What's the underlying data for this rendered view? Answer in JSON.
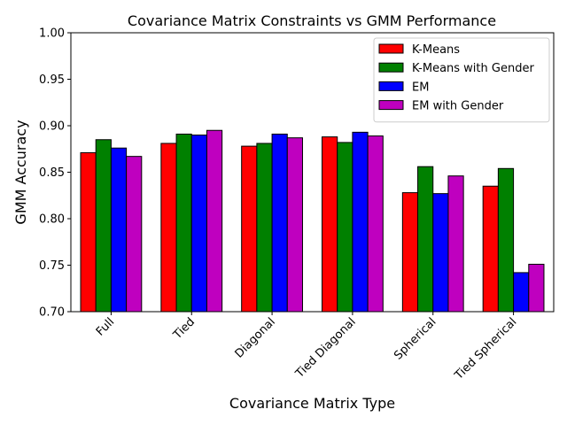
{
  "chart_data": {
    "type": "bar",
    "title": "Covariance Matrix Constraints vs GMM Performance",
    "xlabel": "Covariance Matrix Type",
    "ylabel": "GMM Accuracy",
    "categories": [
      "Full",
      "Tied",
      "Diagonal",
      "Tied Diagonal",
      "Spherical",
      "Tied Spherical"
    ],
    "ylim": [
      0.7,
      1.0
    ],
    "yticks": [
      "0.70",
      "0.75",
      "0.80",
      "0.85",
      "0.90",
      "0.95",
      "1.00"
    ],
    "grid": false,
    "legend_position": "top-right",
    "series": [
      {
        "name": "K-Means",
        "color": "#ff0000",
        "values": [
          0.871,
          0.881,
          0.878,
          0.888,
          0.828,
          0.835
        ]
      },
      {
        "name": "K-Means with Gender",
        "color": "#008000",
        "values": [
          0.885,
          0.891,
          0.881,
          0.882,
          0.856,
          0.854
        ]
      },
      {
        "name": "EM",
        "color": "#0000ff",
        "values": [
          0.876,
          0.89,
          0.891,
          0.893,
          0.827,
          0.742
        ]
      },
      {
        "name": "EM with Gender",
        "color": "#bf00bf",
        "values": [
          0.867,
          0.895,
          0.887,
          0.889,
          0.846,
          0.751
        ]
      }
    ]
  }
}
